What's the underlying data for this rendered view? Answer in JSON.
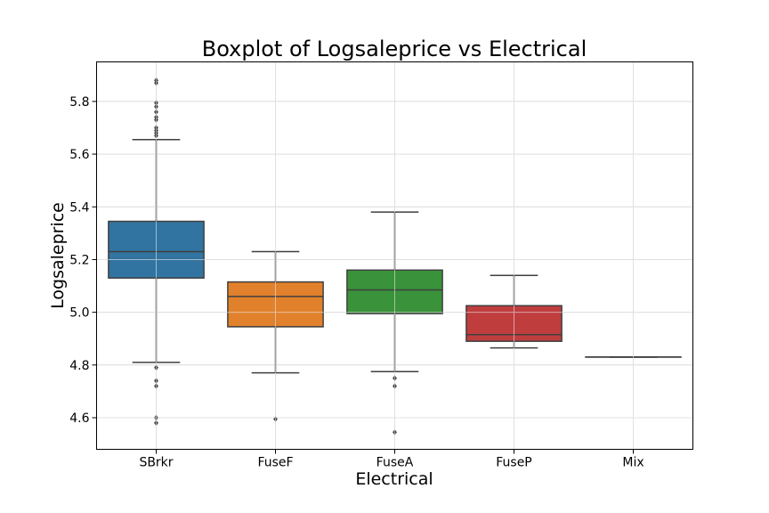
{
  "chart_data": {
    "type": "boxplot",
    "title": "Boxplot of Logsaleprice vs Electrical",
    "xlabel": "Electrical",
    "ylabel": "Logsaleprice",
    "ylim": [
      4.48,
      5.95
    ],
    "yticks": [
      4.6,
      4.8,
      5.0,
      5.2,
      5.4,
      5.6,
      5.8
    ],
    "ytick_labels": [
      "4.6",
      "4.8",
      "5.0",
      "5.2",
      "5.4",
      "5.6",
      "5.8"
    ],
    "grid": true,
    "categories": [
      "SBrkr",
      "FuseF",
      "FuseA",
      "FuseP",
      "Mix"
    ],
    "boxes": [
      {
        "category": "SBrkr",
        "color": "#3274a1",
        "whisker_low": 4.81,
        "q1": 5.13,
        "median": 5.23,
        "q3": 5.345,
        "whisker_high": 5.655,
        "outliers": [
          4.79,
          4.74,
          4.72,
          4.6,
          4.58,
          5.67,
          5.68,
          5.69,
          5.7,
          5.73,
          5.74,
          5.76,
          5.78,
          5.795,
          5.87,
          5.88
        ]
      },
      {
        "category": "FuseF",
        "color": "#e1812c",
        "whisker_low": 4.77,
        "q1": 4.945,
        "median": 5.06,
        "q3": 5.115,
        "whisker_high": 5.23,
        "outliers": [
          4.595
        ]
      },
      {
        "category": "FuseA",
        "color": "#3a923a",
        "whisker_low": 4.775,
        "q1": 4.995,
        "median": 5.085,
        "q3": 5.16,
        "whisker_high": 5.38,
        "outliers": [
          4.75,
          4.72,
          4.545
        ]
      },
      {
        "category": "FuseP",
        "color": "#c03d3e",
        "whisker_low": 4.865,
        "q1": 4.89,
        "median": 4.915,
        "q3": 5.025,
        "whisker_high": 5.14,
        "outliers": []
      },
      {
        "category": "Mix",
        "color": "#9372b2",
        "whisker_low": 4.83,
        "q1": 4.83,
        "median": 4.83,
        "q3": 4.83,
        "whisker_high": 4.83,
        "outliers": []
      }
    ]
  }
}
